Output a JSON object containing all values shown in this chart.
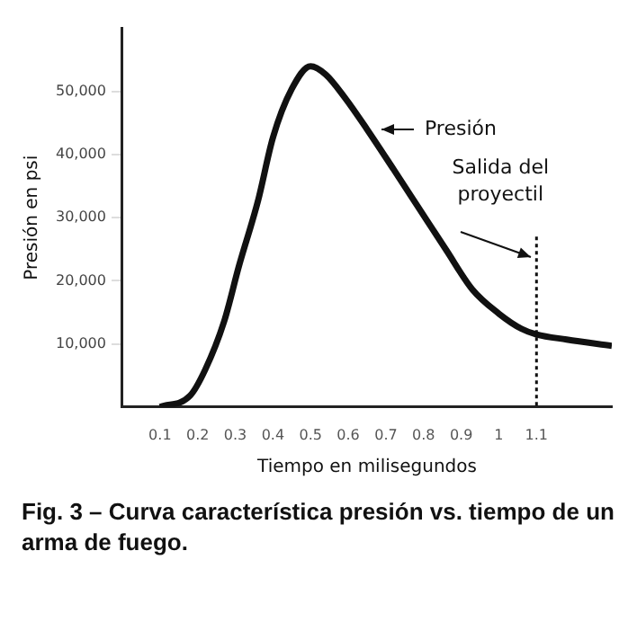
{
  "chart_data": {
    "type": "line",
    "title": "Fig. 3 – Curva característica presión vs. tiempo de un arma de fuego.",
    "xlabel": "Tiempo en milisegundos",
    "ylabel": "Presión en psi",
    "series": [
      {
        "color": "#111111",
        "x": [
          0.1,
          0.18,
          0.22,
          0.27,
          0.31,
          0.36,
          0.4,
          0.45,
          0.5,
          0.54,
          0.59,
          0.65,
          0.72,
          0.79,
          0.86,
          0.93,
          1.0,
          1.06,
          1.1,
          1.18,
          1.3
        ],
        "values": [
          0,
          1800,
          5900,
          13500,
          22400,
          32600,
          42700,
          50400,
          54000,
          52700,
          49100,
          44000,
          37700,
          31300,
          24900,
          18600,
          14800,
          12400,
          11500,
          10700,
          9700
        ]
      }
    ],
    "xlim": [
      0,
      1.3
    ],
    "xticks": [
      0.1,
      0.2,
      0.3,
      0.4,
      0.5,
      0.6,
      0.7,
      0.8,
      0.9,
      1.0,
      1.1
    ],
    "ylim": [
      0,
      60000
    ],
    "yticks": [
      {
        "value": 10000,
        "label": "10,000"
      },
      {
        "value": 20000,
        "label": "20,000"
      },
      {
        "value": 30000,
        "label": "30,000"
      },
      {
        "value": 40000,
        "label": "40,000"
      },
      {
        "value": 50000,
        "label": "50,000"
      }
    ],
    "grid": false,
    "legend": false,
    "marker": "none",
    "line_style": "solid",
    "ref_lines": [
      {
        "axis": "x",
        "value": 1.1,
        "label": "Salida del proyectil",
        "line_style": "dotted",
        "color": "#111111"
      }
    ],
    "annotations": [
      {
        "text": "Presión",
        "x": 0.65,
        "y": 44000
      }
    ]
  }
}
